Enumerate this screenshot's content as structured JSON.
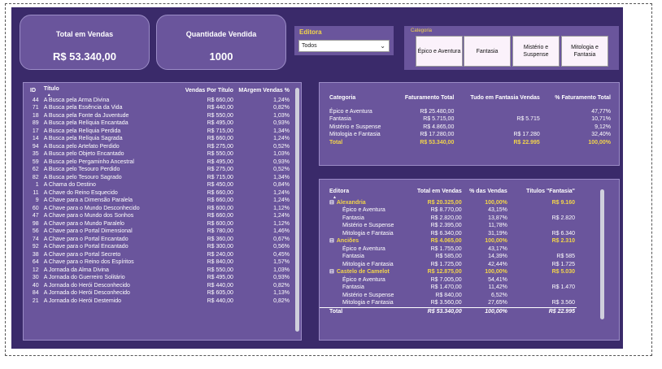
{
  "cards": [
    {
      "label": "Total em Vendas",
      "value": "R$ 53.340,00"
    },
    {
      "label": "Quantidade Vendida",
      "value": "1000"
    }
  ],
  "slicer_editora": {
    "title": "Editora",
    "value": "Todos"
  },
  "slicer_categoria": {
    "title": "Categoria",
    "options": [
      "Épico e Aventura",
      "Fantasia",
      "Mistério e Suspense",
      "Mitologia e Fantasia"
    ]
  },
  "titles_table": {
    "headers": [
      "ID",
      "Título",
      "Vendas Por Título",
      "MArgem Vendas %"
    ],
    "sort_indicator": "▲",
    "rows": [
      [
        "44",
        "A Busca pela Arma Divina",
        "R$ 660,00",
        "1,24%"
      ],
      [
        "71",
        "A Busca pela Essência da Vida",
        "R$ 440,00",
        "0,82%"
      ],
      [
        "18",
        "A Busca pela Fonte da Juventude",
        "R$ 550,00",
        "1,03%"
      ],
      [
        "89",
        "A Busca pela Relíquia Encantada",
        "R$ 495,00",
        "0,93%"
      ],
      [
        "17",
        "A Busca pela Relíquia Perdida",
        "R$ 715,00",
        "1,34%"
      ],
      [
        "14",
        "A Busca pela Relíquia Sagrada",
        "R$ 660,00",
        "1,24%"
      ],
      [
        "94",
        "A Busca pelo Artefato Perdido",
        "R$ 275,00",
        "0,52%"
      ],
      [
        "35",
        "A Busca pelo Objeto Encantado",
        "R$ 550,00",
        "1,03%"
      ],
      [
        "59",
        "A Busca pelo Pergaminho Ancestral",
        "R$ 495,00",
        "0,93%"
      ],
      [
        "62",
        "A Busca pelo Tesouro Perdido",
        "R$ 275,00",
        "0,52%"
      ],
      [
        "82",
        "A Busca pelo Tesouro Sagrado",
        "R$ 715,00",
        "1,34%"
      ],
      [
        "1",
        "A Chama do Destino",
        "R$ 450,00",
        "0,84%"
      ],
      [
        "11",
        "A Chave do Reino Esquecido",
        "R$ 660,00",
        "1,24%"
      ],
      [
        "9",
        "A Chave para a Dimensão Paralela",
        "R$ 660,00",
        "1,24%"
      ],
      [
        "60",
        "A Chave para o Mundo Desconhecido",
        "R$ 600,00",
        "1,12%"
      ],
      [
        "47",
        "A Chave para o Mundo dos Sonhos",
        "R$ 660,00",
        "1,24%"
      ],
      [
        "98",
        "A Chave para o Mundo Paralelo",
        "R$ 600,00",
        "1,12%"
      ],
      [
        "56",
        "A Chave para o Portal Dimensional",
        "R$ 780,00",
        "1,46%"
      ],
      [
        "74",
        "A Chave para o Portal Encantado",
        "R$ 360,00",
        "0,67%"
      ],
      [
        "92",
        "A Chave para o Portal Encantado",
        "R$ 300,00",
        "0,56%"
      ],
      [
        "38",
        "A Chave para o Portal Secreto",
        "R$ 240,00",
        "0,45%"
      ],
      [
        "64",
        "A Chave para o Reino dos Espíritos",
        "R$ 840,00",
        "1,57%"
      ],
      [
        "12",
        "A Jornada da Alma Divina",
        "R$ 550,00",
        "1,03%"
      ],
      [
        "30",
        "A Jornada do Guerreiro Solitário",
        "R$ 495,00",
        "0,93%"
      ],
      [
        "40",
        "A Jornada do Herói Desconhecido",
        "R$ 440,00",
        "0,82%"
      ],
      [
        "84",
        "A Jornada do Herói Desconhecido",
        "R$ 605,00",
        "1,13%"
      ],
      [
        "21",
        "A Jornada do Herói Destemido",
        "R$ 440,00",
        "0,82%"
      ]
    ]
  },
  "category_table": {
    "headers": [
      "Categoria",
      "Faturamento Total",
      "Tudo em Fantasia Vendas",
      "% Faturamento Total"
    ],
    "rows": [
      [
        "Épico e Aventura",
        "R$ 25.480,00",
        "",
        "47,77%"
      ],
      [
        "Fantasia",
        "R$ 5.715,00",
        "R$ 5.715",
        "10,71%"
      ],
      [
        "Mistério e Suspense",
        "R$ 4.865,00",
        "",
        "9,12%"
      ],
      [
        "Mitologia e Fantasia",
        "R$ 17.280,00",
        "R$ 17.280",
        "32,40%"
      ]
    ],
    "total": [
      "Total",
      "R$ 53.340,00",
      "R$ 22.995",
      "100,00%"
    ]
  },
  "editora_matrix": {
    "headers": [
      "Editora",
      "Total em Vendas",
      "% das Vendas",
      "Títulos \"Fantasia\""
    ],
    "sort_indicator": "▲",
    "collapse_glyph": "⊟",
    "rows": [
      {
        "level": 0,
        "cells": [
          "Alexandria",
          "R$ 20.325,00",
          "100,00%",
          "R$ 9.160"
        ]
      },
      {
        "level": 1,
        "cells": [
          "Épico e Aventura",
          "R$ 8.770,00",
          "43,15%",
          ""
        ]
      },
      {
        "level": 1,
        "cells": [
          "Fantasia",
          "R$ 2.820,00",
          "13,87%",
          "R$ 2.820"
        ]
      },
      {
        "level": 1,
        "cells": [
          "Mistério e Suspense",
          "R$ 2.395,00",
          "11,78%",
          ""
        ]
      },
      {
        "level": 1,
        "cells": [
          "Mitologia e Fantasia",
          "R$ 6.340,00",
          "31,19%",
          "R$ 6.340"
        ]
      },
      {
        "level": 0,
        "cells": [
          "Anciões",
          "R$ 4.065,00",
          "100,00%",
          "R$ 2.310"
        ]
      },
      {
        "level": 1,
        "cells": [
          "Épico e Aventura",
          "R$ 1.755,00",
          "43,17%",
          ""
        ]
      },
      {
        "level": 1,
        "cells": [
          "Fantasia",
          "R$ 585,00",
          "14,39%",
          "R$ 585"
        ]
      },
      {
        "level": 1,
        "cells": [
          "Mitologia e Fantasia",
          "R$ 1.725,00",
          "42,44%",
          "R$ 1.725"
        ]
      },
      {
        "level": 0,
        "cells": [
          "Castelo de Camelot",
          "R$ 12.875,00",
          "100,00%",
          "R$ 5.030"
        ]
      },
      {
        "level": 1,
        "cells": [
          "Épico e Aventura",
          "R$ 7.005,00",
          "54,41%",
          ""
        ]
      },
      {
        "level": 1,
        "cells": [
          "Fantasia",
          "R$ 1.470,00",
          "11,42%",
          "R$ 1.470"
        ]
      },
      {
        "level": 1,
        "cells": [
          "Mistério e Suspense",
          "R$ 840,00",
          "6,52%",
          ""
        ]
      },
      {
        "level": 1,
        "cells": [
          "Mitologia e Fantasia",
          "R$ 3.560,00",
          "27,65%",
          "R$ 3.560"
        ]
      }
    ],
    "total": [
      "Total",
      "R$ 53.340,00",
      "100,00%",
      "R$ 22.995"
    ]
  },
  "colors": {
    "background": "#3a2a6a",
    "panel": "#6a559c",
    "accent": "#f2d44a",
    "button": "#fbf2fb"
  }
}
